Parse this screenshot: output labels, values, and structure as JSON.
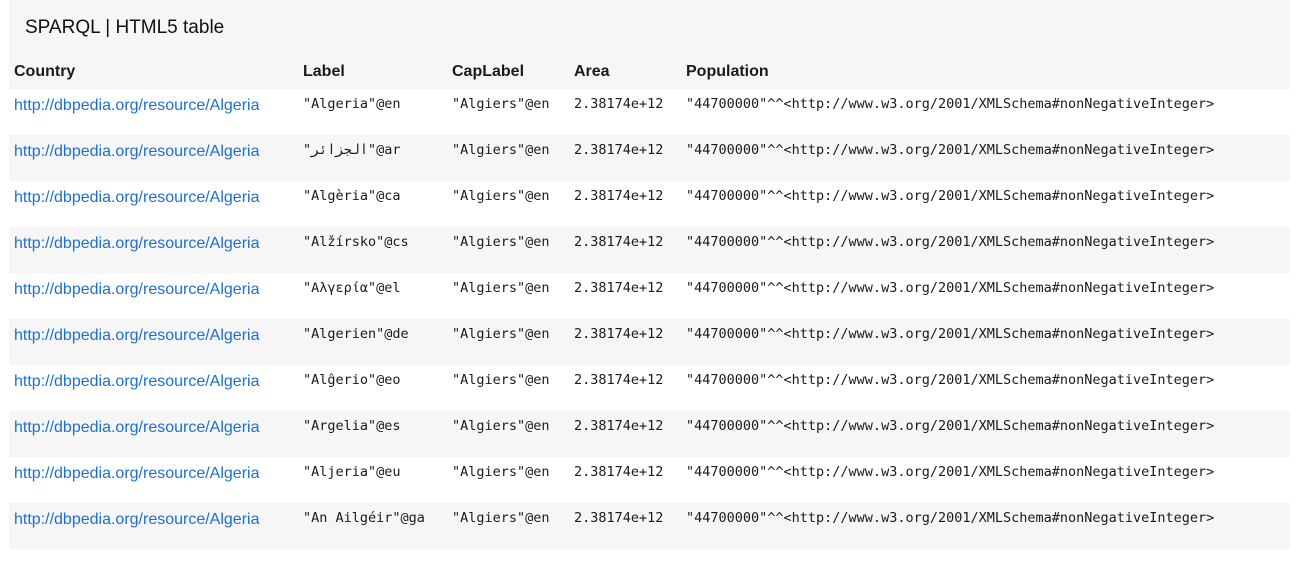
{
  "caption": "SPARQL | HTML5 table",
  "columns": [
    "Country",
    "Label",
    "CapLabel",
    "Area",
    "Population"
  ],
  "rows": [
    {
      "country": "http://dbpedia.org/resource/Algeria",
      "label": "\"Algeria\"@en",
      "caplabel": "\"Algiers\"@en",
      "area": "2.38174e+12",
      "population": "\"44700000\"^^<http://www.w3.org/2001/XMLSchema#nonNegativeInteger>"
    },
    {
      "country": "http://dbpedia.org/resource/Algeria",
      "label": "\"الجزائر\"@ar",
      "caplabel": "\"Algiers\"@en",
      "area": "2.38174e+12",
      "population": "\"44700000\"^^<http://www.w3.org/2001/XMLSchema#nonNegativeInteger>"
    },
    {
      "country": "http://dbpedia.org/resource/Algeria",
      "label": "\"Algèria\"@ca",
      "caplabel": "\"Algiers\"@en",
      "area": "2.38174e+12",
      "population": "\"44700000\"^^<http://www.w3.org/2001/XMLSchema#nonNegativeInteger>"
    },
    {
      "country": "http://dbpedia.org/resource/Algeria",
      "label": "\"Alžírsko\"@cs",
      "caplabel": "\"Algiers\"@en",
      "area": "2.38174e+12",
      "population": "\"44700000\"^^<http://www.w3.org/2001/XMLSchema#nonNegativeInteger>"
    },
    {
      "country": "http://dbpedia.org/resource/Algeria",
      "label": "\"Αλγερία\"@el",
      "caplabel": "\"Algiers\"@en",
      "area": "2.38174e+12",
      "population": "\"44700000\"^^<http://www.w3.org/2001/XMLSchema#nonNegativeInteger>"
    },
    {
      "country": "http://dbpedia.org/resource/Algeria",
      "label": "\"Algerien\"@de",
      "caplabel": "\"Algiers\"@en",
      "area": "2.38174e+12",
      "population": "\"44700000\"^^<http://www.w3.org/2001/XMLSchema#nonNegativeInteger>"
    },
    {
      "country": "http://dbpedia.org/resource/Algeria",
      "label": "\"Alĝerio\"@eo",
      "caplabel": "\"Algiers\"@en",
      "area": "2.38174e+12",
      "population": "\"44700000\"^^<http://www.w3.org/2001/XMLSchema#nonNegativeInteger>"
    },
    {
      "country": "http://dbpedia.org/resource/Algeria",
      "label": "\"Argelia\"@es",
      "caplabel": "\"Algiers\"@en",
      "area": "2.38174e+12",
      "population": "\"44700000\"^^<http://www.w3.org/2001/XMLSchema#nonNegativeInteger>"
    },
    {
      "country": "http://dbpedia.org/resource/Algeria",
      "label": "\"Aljeria\"@eu",
      "caplabel": "\"Algiers\"@en",
      "area": "2.38174e+12",
      "population": "\"44700000\"^^<http://www.w3.org/2001/XMLSchema#nonNegativeInteger>"
    },
    {
      "country": "http://dbpedia.org/resource/Algeria",
      "label": "\"An Ailgéir\"@ga",
      "caplabel": "\"Algiers\"@en",
      "area": "2.38174e+12",
      "population": "\"44700000\"^^<http://www.w3.org/2001/XMLSchema#nonNegativeInteger>"
    }
  ]
}
